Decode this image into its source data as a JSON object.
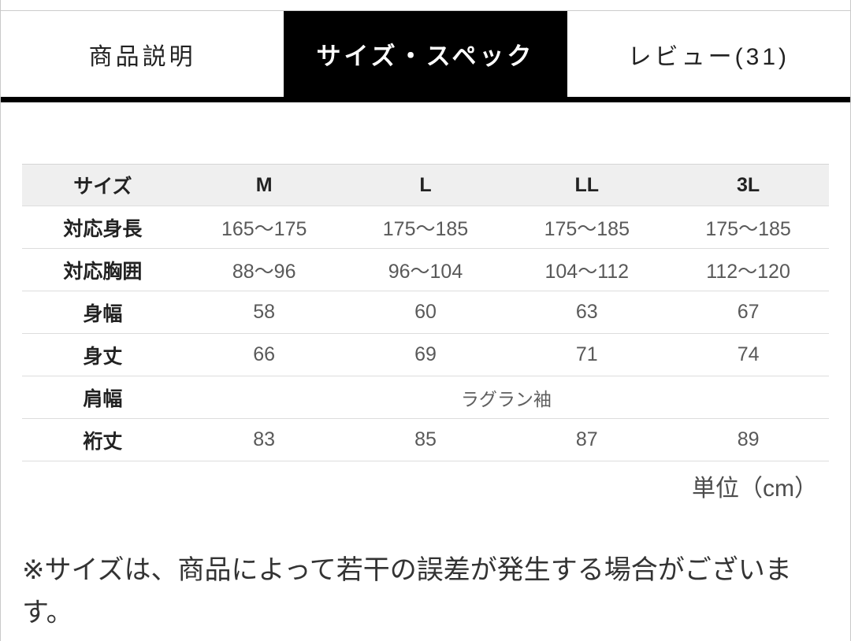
{
  "tabs": [
    {
      "label": "商品説明",
      "active": false
    },
    {
      "label": "サイズ・スペック",
      "active": true
    },
    {
      "label": "レビュー(31)",
      "active": false
    }
  ],
  "size_table": {
    "header": [
      "サイズ",
      "M",
      "L",
      "LL",
      "3L"
    ],
    "rows": [
      {
        "label": "対応身長",
        "values": [
          "165〜175",
          "175〜185",
          "175〜185",
          "175〜185"
        ]
      },
      {
        "label": "対応胸囲",
        "values": [
          "88〜96",
          "96〜104",
          "104〜112",
          "112〜120"
        ]
      },
      {
        "label": "身幅",
        "values": [
          "58",
          "60",
          "63",
          "67"
        ]
      },
      {
        "label": "身丈",
        "values": [
          "66",
          "69",
          "71",
          "74"
        ]
      },
      {
        "label": "肩幅",
        "span": true,
        "values": [
          "ラグラン袖"
        ]
      },
      {
        "label": "裄丈",
        "values": [
          "83",
          "85",
          "87",
          "89"
        ]
      }
    ],
    "unit_note": "単位（cm）"
  },
  "footnote": "※サイズは、商品によって若干の誤差が発生する場合がございます。",
  "colors": {
    "active_tab_bg": "#000000",
    "active_tab_text": "#ffffff",
    "inactive_tab_text": "#222222",
    "table_header_bg": "#efefef",
    "table_border": "#dddddd",
    "value_text": "#595959"
  }
}
